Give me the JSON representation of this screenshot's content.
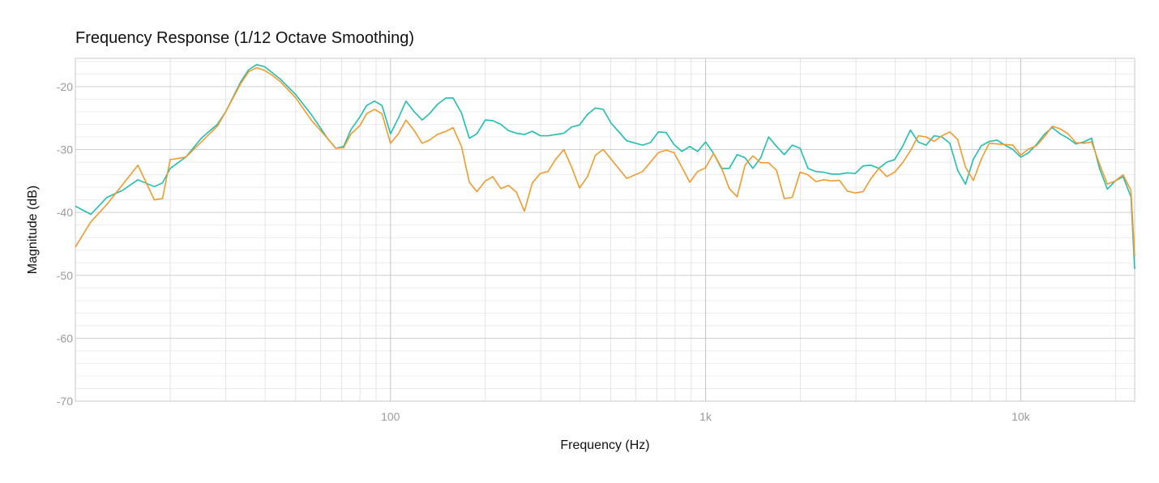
{
  "chart_data": {
    "type": "line",
    "title": "Frequency Response",
    "subtitle": "(1/12 Octave Smoothing)",
    "xlabel": "Frequency (Hz)",
    "ylabel": "Magnitude (dB)",
    "xscale": "log",
    "xlim": [
      10,
      23000
    ],
    "ylim": [
      -70,
      -15.5
    ],
    "grid": true,
    "x_ticks": [
      {
        "value": 100,
        "label": "100"
      },
      {
        "value": 1000,
        "label": "1k"
      },
      {
        "value": 10000,
        "label": "10k"
      }
    ],
    "y_ticks": [
      {
        "value": -20,
        "label": "-20"
      },
      {
        "value": -30,
        "label": "-30"
      },
      {
        "value": -40,
        "label": "-40"
      },
      {
        "value": -50,
        "label": "-50"
      },
      {
        "value": -60,
        "label": "-60"
      },
      {
        "value": -70,
        "label": "-70"
      }
    ],
    "series": [
      {
        "color": "#1fbfb0",
        "points": [
          [
            10,
            -39
          ],
          [
            11.2,
            -40.3
          ],
          [
            12.6,
            -37.6
          ],
          [
            14.1,
            -36.5
          ],
          [
            15.8,
            -34.8
          ],
          [
            17.8,
            -35.9
          ],
          [
            18.9,
            -35.3
          ],
          [
            20,
            -33
          ],
          [
            22.4,
            -31.2
          ],
          [
            25.1,
            -28.2
          ],
          [
            28.2,
            -26
          ],
          [
            30,
            -24
          ],
          [
            33.5,
            -19.2
          ],
          [
            35.5,
            -17.3
          ],
          [
            37.6,
            -16.5
          ],
          [
            39.8,
            -16.8
          ],
          [
            42.2,
            -17.8
          ],
          [
            44.7,
            -18.8
          ],
          [
            50.1,
            -21.3
          ],
          [
            56.2,
            -24.5
          ],
          [
            63.1,
            -28.2
          ],
          [
            67,
            -29.8
          ],
          [
            71,
            -29.5
          ],
          [
            75,
            -26.8
          ],
          [
            80,
            -24.8
          ],
          [
            84,
            -23
          ],
          [
            89,
            -22.3
          ],
          [
            94,
            -23
          ],
          [
            100,
            -27.5
          ],
          [
            106,
            -25
          ],
          [
            112,
            -22.3
          ],
          [
            119,
            -24
          ],
          [
            126,
            -25.3
          ],
          [
            133,
            -24.3
          ],
          [
            141,
            -22.8
          ],
          [
            150,
            -21.8
          ],
          [
            158,
            -21.8
          ],
          [
            168,
            -24.2
          ],
          [
            178,
            -28.2
          ],
          [
            188,
            -27.5
          ],
          [
            200,
            -25.3
          ],
          [
            211,
            -25.4
          ],
          [
            224,
            -26
          ],
          [
            237,
            -27
          ],
          [
            251,
            -27.4
          ],
          [
            266,
            -27.6
          ],
          [
            282,
            -27.1
          ],
          [
            299,
            -27.8
          ],
          [
            316,
            -27.8
          ],
          [
            335,
            -27.6
          ],
          [
            355,
            -27.4
          ],
          [
            376,
            -26.4
          ],
          [
            398,
            -26.1
          ],
          [
            422,
            -24.4
          ],
          [
            447,
            -23.4
          ],
          [
            473,
            -23.6
          ],
          [
            501,
            -25.8
          ],
          [
            562,
            -28.6
          ],
          [
            631,
            -29.3
          ],
          [
            668,
            -28.9
          ],
          [
            708,
            -27.2
          ],
          [
            750,
            -27.3
          ],
          [
            794,
            -29.2
          ],
          [
            841,
            -30.3
          ],
          [
            891,
            -29.5
          ],
          [
            944,
            -30.3
          ],
          [
            1000,
            -28.8
          ],
          [
            1059,
            -30.6
          ],
          [
            1122,
            -33
          ],
          [
            1189,
            -33
          ],
          [
            1259,
            -30.8
          ],
          [
            1334,
            -31.3
          ],
          [
            1413,
            -33
          ],
          [
            1496,
            -31.3
          ],
          [
            1585,
            -28
          ],
          [
            1679,
            -29.5
          ],
          [
            1778,
            -30.8
          ],
          [
            1884,
            -29.3
          ],
          [
            1995,
            -29.8
          ],
          [
            2113,
            -33
          ],
          [
            2239,
            -33.5
          ],
          [
            2371,
            -33.6
          ],
          [
            2512,
            -33.9
          ],
          [
            2661,
            -33.9
          ],
          [
            2818,
            -33.7
          ],
          [
            2985,
            -33.8
          ],
          [
            3162,
            -32.6
          ],
          [
            3350,
            -32.5
          ],
          [
            3548,
            -33
          ],
          [
            3758,
            -32
          ],
          [
            3981,
            -31.6
          ],
          [
            4217,
            -29.5
          ],
          [
            4467,
            -26.9
          ],
          [
            4732,
            -28.8
          ],
          [
            5012,
            -29.3
          ],
          [
            5309,
            -27.8
          ],
          [
            5623,
            -28
          ],
          [
            5957,
            -29
          ],
          [
            6310,
            -33.3
          ],
          [
            6683,
            -35.5
          ],
          [
            7079,
            -31.5
          ],
          [
            7499,
            -29.4
          ],
          [
            7943,
            -28.7
          ],
          [
            8414,
            -28.5
          ],
          [
            8913,
            -29.3
          ],
          [
            9441,
            -30
          ],
          [
            10000,
            -31.2
          ],
          [
            10593,
            -30.5
          ],
          [
            11220,
            -29.2
          ],
          [
            11885,
            -27.6
          ],
          [
            12589,
            -26.5
          ],
          [
            13335,
            -27.5
          ],
          [
            14125,
            -28.2
          ],
          [
            14962,
            -29.1
          ],
          [
            15849,
            -28.8
          ],
          [
            16788,
            -28.2
          ],
          [
            17783,
            -33
          ],
          [
            18836,
            -36.3
          ],
          [
            19953,
            -35
          ],
          [
            21135,
            -34.3
          ],
          [
            22387,
            -37.5
          ],
          [
            23000,
            -49
          ]
        ]
      },
      {
        "color": "#f39a2b",
        "points": [
          [
            10,
            -45.5
          ],
          [
            11.2,
            -41.5
          ],
          [
            12.6,
            -38.7
          ],
          [
            15.8,
            -32.5
          ],
          [
            17.8,
            -38
          ],
          [
            18.9,
            -37.8
          ],
          [
            20,
            -31.6
          ],
          [
            22.4,
            -31.2
          ],
          [
            25.1,
            -28.8
          ],
          [
            28.2,
            -26.3
          ],
          [
            30,
            -24
          ],
          [
            33.5,
            -19.5
          ],
          [
            35.5,
            -17.6
          ],
          [
            37.6,
            -17
          ],
          [
            39.8,
            -17.4
          ],
          [
            42.2,
            -18.2
          ],
          [
            44.7,
            -19.2
          ],
          [
            50.1,
            -21.8
          ],
          [
            56.2,
            -25.4
          ],
          [
            63.1,
            -28.2
          ],
          [
            67,
            -29.8
          ],
          [
            71,
            -29.7
          ],
          [
            75,
            -27.5
          ],
          [
            80,
            -26.2
          ],
          [
            84,
            -24.3
          ],
          [
            89,
            -23.6
          ],
          [
            94,
            -24.3
          ],
          [
            100,
            -29
          ],
          [
            106,
            -27.5
          ],
          [
            112,
            -25.3
          ],
          [
            119,
            -27
          ],
          [
            126,
            -29
          ],
          [
            133,
            -28.5
          ],
          [
            141,
            -27.6
          ],
          [
            150,
            -27.1
          ],
          [
            158,
            -26.5
          ],
          [
            168,
            -29.5
          ],
          [
            178,
            -35.2
          ],
          [
            188,
            -36.7
          ],
          [
            200,
            -35
          ],
          [
            211,
            -34.3
          ],
          [
            224,
            -36.2
          ],
          [
            237,
            -35.7
          ],
          [
            251,
            -36.8
          ],
          [
            266,
            -39.8
          ],
          [
            282,
            -35.3
          ],
          [
            299,
            -33.8
          ],
          [
            316,
            -33.5
          ],
          [
            335,
            -31.5
          ],
          [
            355,
            -30
          ],
          [
            376,
            -32.8
          ],
          [
            398,
            -36.1
          ],
          [
            422,
            -34.3
          ],
          [
            447,
            -30.9
          ],
          [
            473,
            -30
          ],
          [
            501,
            -31.5
          ],
          [
            562,
            -34.6
          ],
          [
            631,
            -33.5
          ],
          [
            668,
            -32
          ],
          [
            708,
            -30.5
          ],
          [
            750,
            -30.1
          ],
          [
            794,
            -30.5
          ],
          [
            841,
            -32.8
          ],
          [
            891,
            -35.2
          ],
          [
            944,
            -33.5
          ],
          [
            1000,
            -32.9
          ],
          [
            1059,
            -30.6
          ],
          [
            1122,
            -32.8
          ],
          [
            1189,
            -36.2
          ],
          [
            1259,
            -37.5
          ],
          [
            1334,
            -32.5
          ],
          [
            1413,
            -31
          ],
          [
            1496,
            -32.1
          ],
          [
            1585,
            -32.1
          ],
          [
            1679,
            -33.3
          ],
          [
            1778,
            -37.8
          ],
          [
            1884,
            -37.6
          ],
          [
            1995,
            -33.6
          ],
          [
            2113,
            -34
          ],
          [
            2239,
            -35.1
          ],
          [
            2371,
            -34.8
          ],
          [
            2512,
            -35
          ],
          [
            2661,
            -34.9
          ],
          [
            2818,
            -36.6
          ],
          [
            2985,
            -36.9
          ],
          [
            3162,
            -36.7
          ],
          [
            3350,
            -34.6
          ],
          [
            3548,
            -33
          ],
          [
            3758,
            -34.3
          ],
          [
            3981,
            -33.6
          ],
          [
            4217,
            -32.1
          ],
          [
            4467,
            -30.2
          ],
          [
            4732,
            -27.8
          ],
          [
            5012,
            -28
          ],
          [
            5309,
            -28.7
          ],
          [
            5623,
            -27.8
          ],
          [
            5957,
            -27.2
          ],
          [
            6310,
            -28.4
          ],
          [
            6683,
            -32.8
          ],
          [
            7079,
            -34.9
          ],
          [
            7499,
            -31.5
          ],
          [
            7943,
            -29
          ],
          [
            8414,
            -29.1
          ],
          [
            8913,
            -29.2
          ],
          [
            9441,
            -29.3
          ],
          [
            10000,
            -30.9
          ],
          [
            10593,
            -29.9
          ],
          [
            11220,
            -29.4
          ],
          [
            11885,
            -28
          ],
          [
            12589,
            -26.3
          ],
          [
            13335,
            -26.7
          ],
          [
            14125,
            -27.5
          ],
          [
            14962,
            -28.9
          ],
          [
            15849,
            -29
          ],
          [
            16788,
            -28.8
          ],
          [
            17783,
            -32.3
          ],
          [
            18836,
            -35.5
          ],
          [
            19953,
            -35
          ],
          [
            21135,
            -34
          ],
          [
            22387,
            -36.5
          ],
          [
            23000,
            -47
          ]
        ]
      }
    ]
  }
}
